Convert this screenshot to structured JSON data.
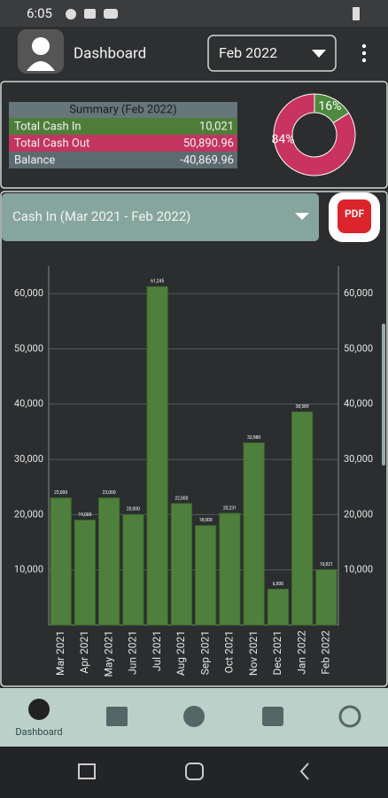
{
  "status_bar": {
    "time": "6:05"
  },
  "header": {
    "title": "Dashboard",
    "month": "Feb 2022"
  },
  "summary": {
    "title": "Summary (Feb 2022)",
    "rows": [
      [
        "Total Cash In",
        "10,021"
      ],
      [
        "Total Cash Out",
        "50,890.96"
      ],
      [
        "Balance",
        "-40,869.96"
      ]
    ]
  },
  "dropdown": {
    "label": "Cash In (Mar 2021 - Feb 2022)"
  },
  "pdf_button": {
    "label": "PDF"
  },
  "nav": {
    "active_label": "Dashboard"
  },
  "chart_data": [
    {
      "type": "pie",
      "values": [
        16,
        84
      ],
      "value_labels": [
        "16%",
        "84%"
      ],
      "colors": [
        "#4e8a3e",
        "#c8335f"
      ]
    },
    {
      "type": "bar",
      "categories": [
        "Mar 2021",
        "Apr 2021",
        "May 2021",
        "Jun 2021",
        "Jul 2021",
        "Aug 2021",
        "Sep 2021",
        "Oct 2021",
        "Nov 2021",
        "Dec 2021",
        "Jan 2022",
        "Feb 2022"
      ],
      "values": [
        23000,
        19000,
        23000,
        20000,
        61245,
        22000,
        18000,
        20231,
        32980,
        6500,
        38589,
        10021
      ],
      "value_labels": [
        "23,000",
        "19,000",
        "23,000",
        "20,000",
        "61,245",
        "22,000",
        "18,000",
        "20,231",
        "32,980",
        "6,500",
        "38,589",
        "10,021"
      ],
      "color": "#4f7f3c",
      "ylim": [
        0,
        65000
      ],
      "yticks": [
        {
          "value": 10000,
          "label": "10,000"
        },
        {
          "value": 20000,
          "label": "20,000"
        },
        {
          "value": 30000,
          "label": "30,000"
        },
        {
          "value": 40000,
          "label": "40,000"
        },
        {
          "value": 50000,
          "label": "50,000"
        },
        {
          "value": 60000,
          "label": "60,000"
        }
      ],
      "grid": true
    }
  ]
}
